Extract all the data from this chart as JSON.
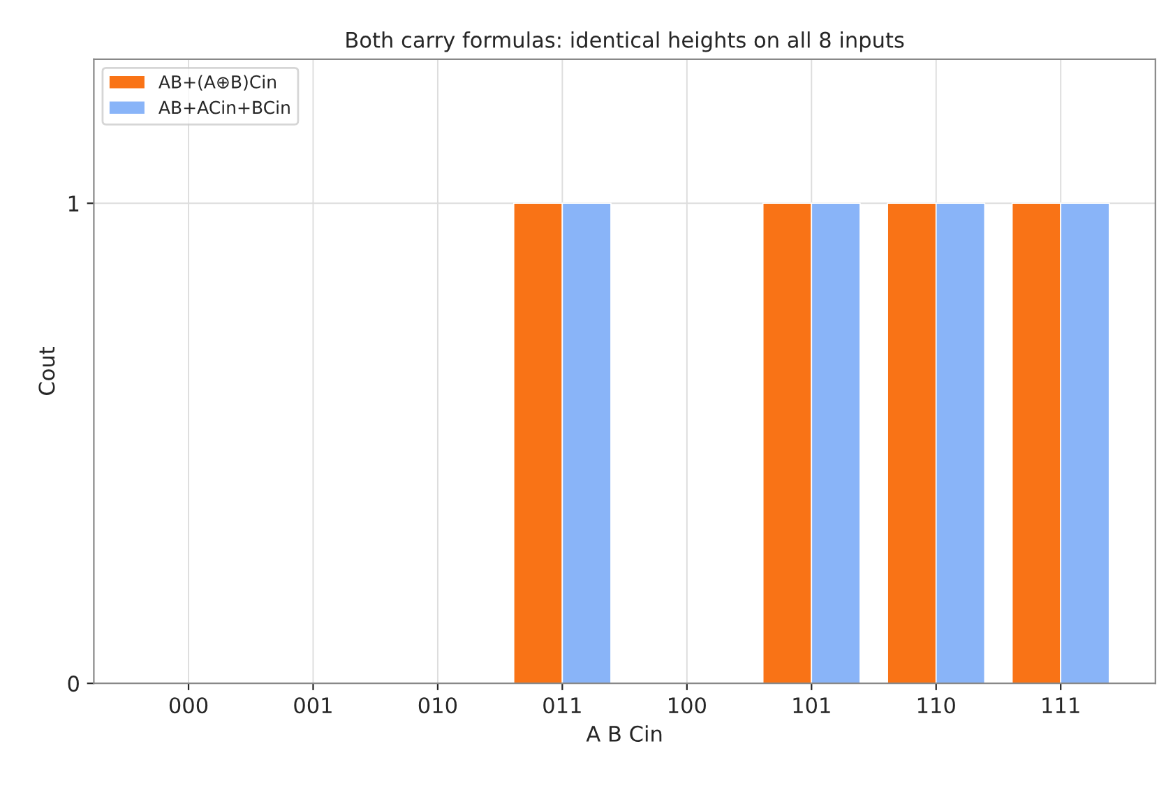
{
  "chart_data": {
    "type": "bar",
    "title": "Both carry formulas: identical heights on all 8 inputs",
    "xlabel": "A B Cin",
    "ylabel": "Cout",
    "categories": [
      "000",
      "001",
      "010",
      "011",
      "100",
      "101",
      "110",
      "111"
    ],
    "series": [
      {
        "name": "AB+(A⊕B)Cin",
        "color": "#f97316",
        "values": [
          0,
          0,
          0,
          1,
          0,
          1,
          1,
          1
        ]
      },
      {
        "name": "AB+ACin+BCin",
        "color": "#89b4f8",
        "values": [
          0,
          0,
          0,
          1,
          0,
          1,
          1,
          1
        ]
      }
    ],
    "ylim": [
      0,
      1.3
    ],
    "yticks": [
      0,
      1
    ],
    "grid": true,
    "legend": "top left"
  }
}
